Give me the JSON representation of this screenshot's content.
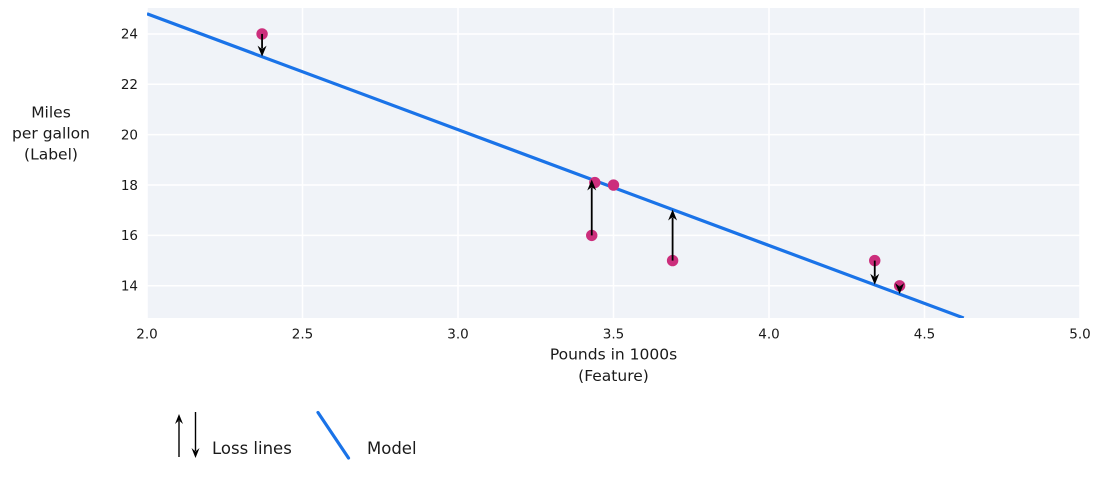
{
  "figure": {
    "background": "#ffffff"
  },
  "chart_data": {
    "type": "scatter",
    "title": "",
    "xlabel_lines": [
      "Pounds in 1000s",
      "(Feature)"
    ],
    "ylabel_lines": [
      "Miles",
      "per gallon",
      "(Label)"
    ],
    "xlim": [
      2.0,
      5.0
    ],
    "ylim": [
      12.72,
      25.03
    ],
    "grid": true,
    "x_ticks": [
      {
        "v": 2.0,
        "label": "2.0"
      },
      {
        "v": 2.5,
        "label": "2.5"
      },
      {
        "v": 3.0,
        "label": "3.0"
      },
      {
        "v": 3.5,
        "label": "3.5"
      },
      {
        "v": 4.0,
        "label": "4.0"
      },
      {
        "v": 4.5,
        "label": "4.5"
      },
      {
        "v": 5.0,
        "label": "5.0"
      }
    ],
    "y_ticks": [
      {
        "v": 14,
        "label": "14"
      },
      {
        "v": 16,
        "label": "16"
      },
      {
        "v": 18,
        "label": "18"
      },
      {
        "v": 20,
        "label": "20"
      },
      {
        "v": 22,
        "label": "22"
      },
      {
        "v": 24,
        "label": "24"
      }
    ],
    "points": [
      {
        "x": 3.5,
        "y": 18
      },
      {
        "x": 3.69,
        "y": 15
      },
      {
        "x": 3.44,
        "y": 18.1
      },
      {
        "x": 3.43,
        "y": 16
      },
      {
        "x": 4.34,
        "y": 15
      },
      {
        "x": 4.42,
        "y": 14
      },
      {
        "x": 2.37,
        "y": 24
      }
    ],
    "model_line": {
      "slope": -4.6,
      "intercept": 34,
      "x_start": 2.0
    },
    "loss_arrows": [
      {
        "x": 2.37,
        "from_y": 24,
        "to_y": 23.1,
        "direction": "down"
      },
      {
        "x": 3.43,
        "from_y": 16,
        "to_y": 18.22,
        "direction": "up"
      },
      {
        "x": 3.69,
        "from_y": 15,
        "to_y": 17.03,
        "direction": "up"
      },
      {
        "x": 4.34,
        "from_y": 15,
        "to_y": 14.04,
        "direction": "down"
      },
      {
        "x": 4.42,
        "from_y": 14,
        "to_y": 13.67,
        "direction": "down"
      }
    ],
    "legend": [
      {
        "label": "Loss lines",
        "symbol": "up-down-arrows"
      },
      {
        "label": "Model",
        "symbol": "line"
      }
    ],
    "legend_position": "bottom-left",
    "colors": {
      "model_line": "#1a73e8",
      "points": "#cc2e7c",
      "loss_arrows": "#000000",
      "plot_background": "#f0f3f8",
      "gridlines": "#ffffff",
      "text": "#1a1a1a"
    }
  }
}
